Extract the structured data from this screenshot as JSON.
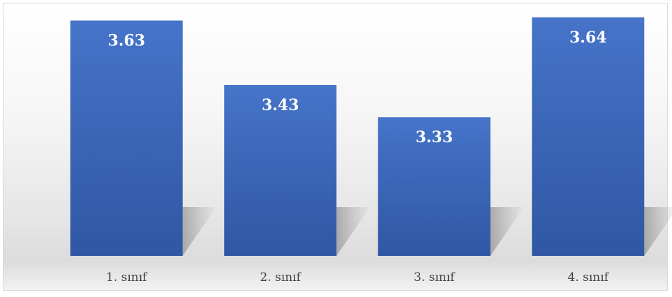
{
  "chart_data": {
    "type": "bar",
    "categories": [
      "1. sınıf",
      "2. sınıf",
      "3. sınıf",
      "4. sınıf"
    ],
    "values": [
      3.63,
      3.43,
      3.33,
      3.64
    ],
    "value_labels": [
      "3.63",
      "3.43",
      "3.33",
      "3.64"
    ],
    "title": "",
    "xlabel": "",
    "ylabel": "",
    "ylim": [
      2.9,
      3.67
    ],
    "grid": false,
    "legend": "none",
    "colors": {
      "bar_top": "#4674c9",
      "bar_bottom": "#2f57a3",
      "value_text": "#ffffff",
      "category_text": "#404040"
    }
  }
}
